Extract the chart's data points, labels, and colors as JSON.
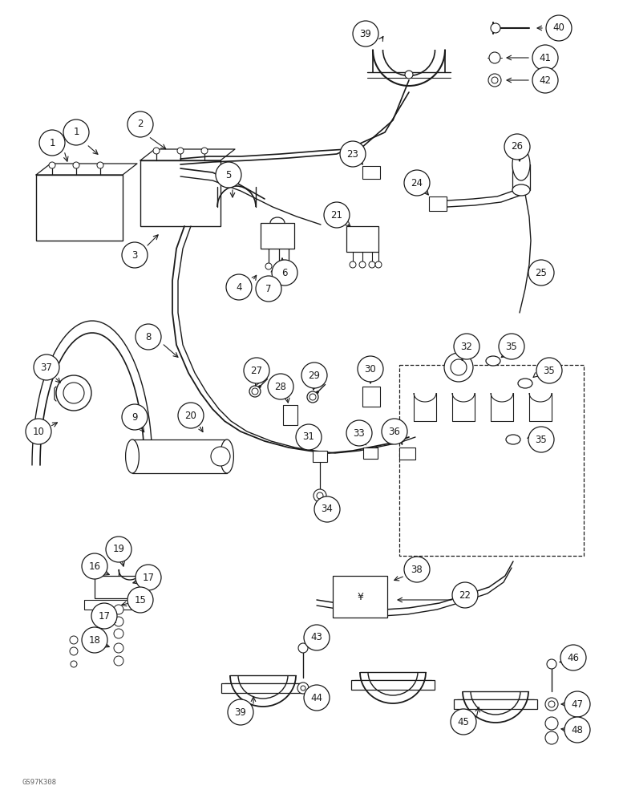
{
  "figsize": [
    7.72,
    10.0
  ],
  "dpi": 100,
  "background_color": "#ffffff",
  "watermark": "GS97K308"
}
